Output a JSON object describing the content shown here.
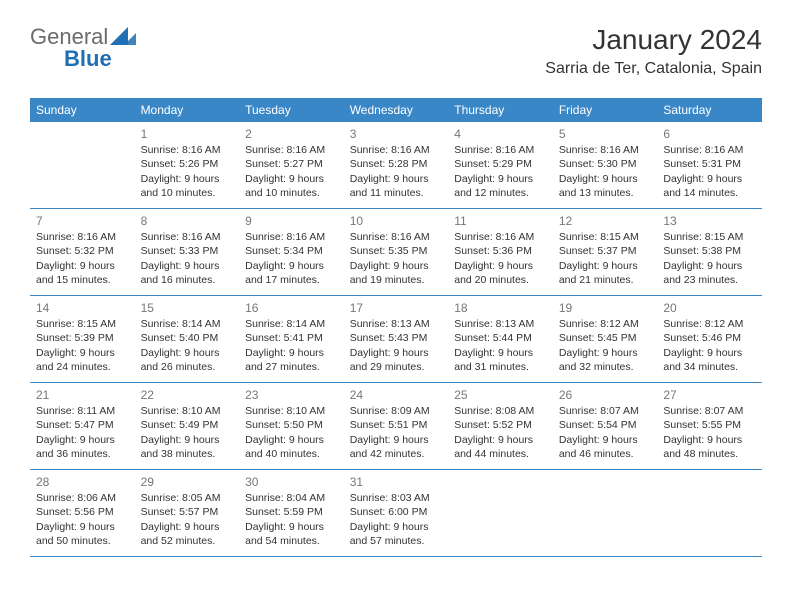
{
  "brand": {
    "word1": "General",
    "word2": "Blue",
    "color_gray": "#6b6b6b",
    "color_blue": "#1f6fb2",
    "tri_color": "#1f6fb2"
  },
  "header": {
    "title": "January 2024",
    "location": "Sarria de Ter, Catalonia, Spain"
  },
  "style": {
    "header_bg": "#3a87c8",
    "header_fg": "#ffffff",
    "row_border": "#3a87c8",
    "daynum_color": "#777777",
    "text_color": "#333333",
    "page_bg": "#ffffff"
  },
  "dayHeaders": [
    "Sunday",
    "Monday",
    "Tuesday",
    "Wednesday",
    "Thursday",
    "Friday",
    "Saturday"
  ],
  "weeks": [
    [
      null,
      {
        "d": "1",
        "sr": "8:16 AM",
        "ss": "5:26 PM",
        "dl": "9 hours and 10 minutes."
      },
      {
        "d": "2",
        "sr": "8:16 AM",
        "ss": "5:27 PM",
        "dl": "9 hours and 10 minutes."
      },
      {
        "d": "3",
        "sr": "8:16 AM",
        "ss": "5:28 PM",
        "dl": "9 hours and 11 minutes."
      },
      {
        "d": "4",
        "sr": "8:16 AM",
        "ss": "5:29 PM",
        "dl": "9 hours and 12 minutes."
      },
      {
        "d": "5",
        "sr": "8:16 AM",
        "ss": "5:30 PM",
        "dl": "9 hours and 13 minutes."
      },
      {
        "d": "6",
        "sr": "8:16 AM",
        "ss": "5:31 PM",
        "dl": "9 hours and 14 minutes."
      }
    ],
    [
      {
        "d": "7",
        "sr": "8:16 AM",
        "ss": "5:32 PM",
        "dl": "9 hours and 15 minutes."
      },
      {
        "d": "8",
        "sr": "8:16 AM",
        "ss": "5:33 PM",
        "dl": "9 hours and 16 minutes."
      },
      {
        "d": "9",
        "sr": "8:16 AM",
        "ss": "5:34 PM",
        "dl": "9 hours and 17 minutes."
      },
      {
        "d": "10",
        "sr": "8:16 AM",
        "ss": "5:35 PM",
        "dl": "9 hours and 19 minutes."
      },
      {
        "d": "11",
        "sr": "8:16 AM",
        "ss": "5:36 PM",
        "dl": "9 hours and 20 minutes."
      },
      {
        "d": "12",
        "sr": "8:15 AM",
        "ss": "5:37 PM",
        "dl": "9 hours and 21 minutes."
      },
      {
        "d": "13",
        "sr": "8:15 AM",
        "ss": "5:38 PM",
        "dl": "9 hours and 23 minutes."
      }
    ],
    [
      {
        "d": "14",
        "sr": "8:15 AM",
        "ss": "5:39 PM",
        "dl": "9 hours and 24 minutes."
      },
      {
        "d": "15",
        "sr": "8:14 AM",
        "ss": "5:40 PM",
        "dl": "9 hours and 26 minutes."
      },
      {
        "d": "16",
        "sr": "8:14 AM",
        "ss": "5:41 PM",
        "dl": "9 hours and 27 minutes."
      },
      {
        "d": "17",
        "sr": "8:13 AM",
        "ss": "5:43 PM",
        "dl": "9 hours and 29 minutes."
      },
      {
        "d": "18",
        "sr": "8:13 AM",
        "ss": "5:44 PM",
        "dl": "9 hours and 31 minutes."
      },
      {
        "d": "19",
        "sr": "8:12 AM",
        "ss": "5:45 PM",
        "dl": "9 hours and 32 minutes."
      },
      {
        "d": "20",
        "sr": "8:12 AM",
        "ss": "5:46 PM",
        "dl": "9 hours and 34 minutes."
      }
    ],
    [
      {
        "d": "21",
        "sr": "8:11 AM",
        "ss": "5:47 PM",
        "dl": "9 hours and 36 minutes."
      },
      {
        "d": "22",
        "sr": "8:10 AM",
        "ss": "5:49 PM",
        "dl": "9 hours and 38 minutes."
      },
      {
        "d": "23",
        "sr": "8:10 AM",
        "ss": "5:50 PM",
        "dl": "9 hours and 40 minutes."
      },
      {
        "d": "24",
        "sr": "8:09 AM",
        "ss": "5:51 PM",
        "dl": "9 hours and 42 minutes."
      },
      {
        "d": "25",
        "sr": "8:08 AM",
        "ss": "5:52 PM",
        "dl": "9 hours and 44 minutes."
      },
      {
        "d": "26",
        "sr": "8:07 AM",
        "ss": "5:54 PM",
        "dl": "9 hours and 46 minutes."
      },
      {
        "d": "27",
        "sr": "8:07 AM",
        "ss": "5:55 PM",
        "dl": "9 hours and 48 minutes."
      }
    ],
    [
      {
        "d": "28",
        "sr": "8:06 AM",
        "ss": "5:56 PM",
        "dl": "9 hours and 50 minutes."
      },
      {
        "d": "29",
        "sr": "8:05 AM",
        "ss": "5:57 PM",
        "dl": "9 hours and 52 minutes."
      },
      {
        "d": "30",
        "sr": "8:04 AM",
        "ss": "5:59 PM",
        "dl": "9 hours and 54 minutes."
      },
      {
        "d": "31",
        "sr": "8:03 AM",
        "ss": "6:00 PM",
        "dl": "9 hours and 57 minutes."
      },
      null,
      null,
      null
    ]
  ],
  "labels": {
    "sunrise": "Sunrise:",
    "sunset": "Sunset:",
    "daylight": "Daylight:"
  }
}
